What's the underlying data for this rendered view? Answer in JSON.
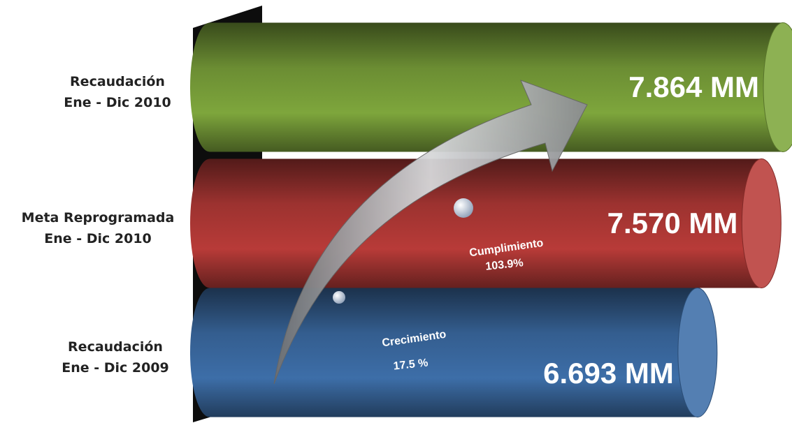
{
  "chart_data": {
    "type": "cylinder-bar",
    "categories": [
      [
        "Recaudación",
        "Ene - Dic 2010"
      ],
      [
        "Meta Reprogramada",
        "Ene - Dic 2010"
      ],
      [
        "Recaudación",
        "Ene - Dic 2009"
      ]
    ],
    "values": [
      7864,
      7570,
      6693
    ],
    "value_labels": [
      "7.864 MM",
      "7.570 MM",
      "6.693 MM"
    ],
    "colors": [
      "#7ea63c",
      "#b83b38",
      "#3d6ea8"
    ],
    "annotations": [
      [
        "Cumplimiento",
        "103.9%"
      ],
      [
        "Crecimiento",
        "17.5 %"
      ]
    ]
  }
}
